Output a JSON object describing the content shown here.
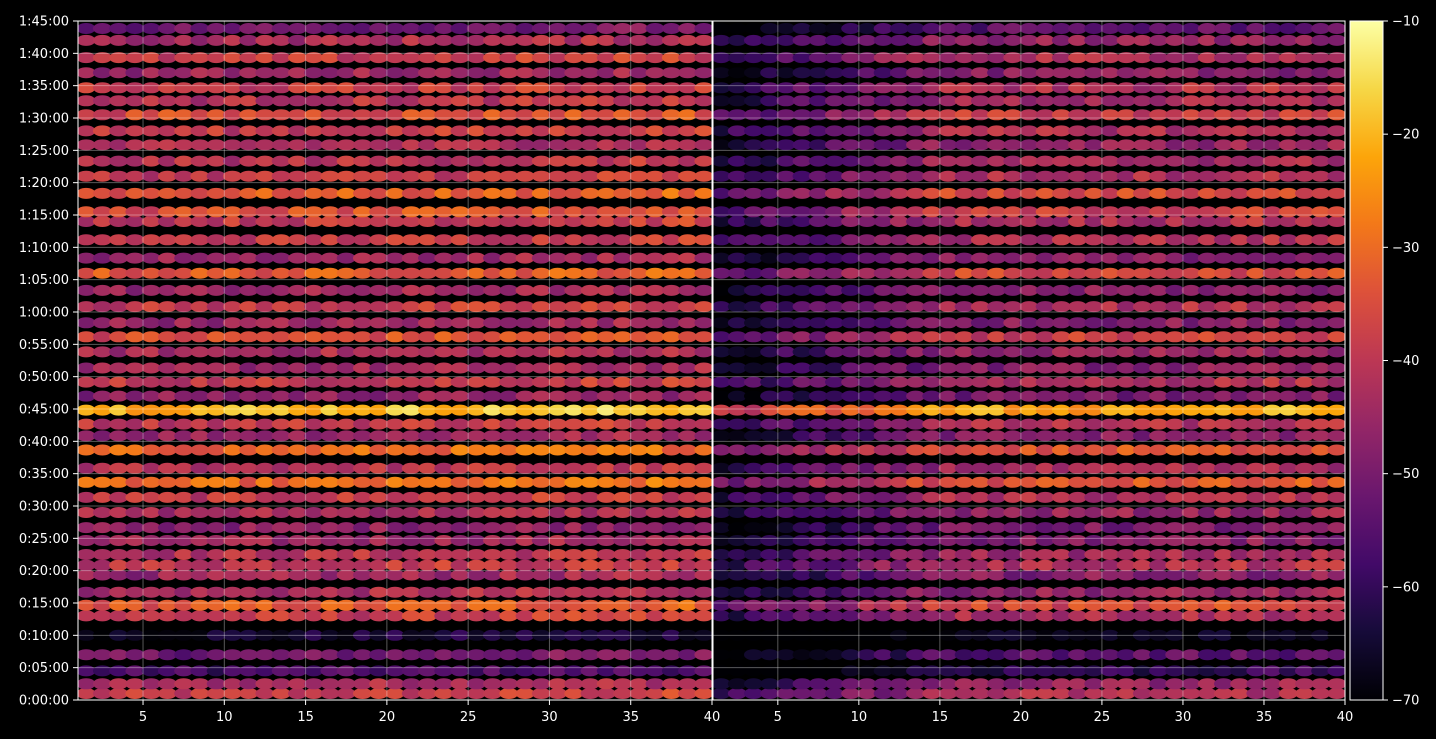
{
  "chart_data": {
    "type": "heatmap",
    "title": "",
    "xlabel": "",
    "ylabel": "",
    "grid": true,
    "background": "#000000",
    "colormap": "inferno",
    "panels": [
      {
        "xlim": [
          1,
          40
        ],
        "x_ticks": [
          5,
          10,
          15,
          20,
          25,
          30,
          35,
          40
        ],
        "x_tick_labels": [
          "5",
          "10",
          "15",
          "20",
          "25",
          "30",
          "35",
          "40"
        ]
      },
      {
        "xlim": [
          1,
          40
        ],
        "x_ticks": [
          5,
          10,
          15,
          20,
          25,
          30,
          35,
          40
        ],
        "x_tick_labels": [
          "5",
          "10",
          "15",
          "20",
          "25",
          "30",
          "35",
          "40"
        ]
      }
    ],
    "ylim_seconds": [
      0,
      6300
    ],
    "y_ticks_seconds": [
      0,
      300,
      600,
      900,
      1200,
      1500,
      1800,
      2100,
      2400,
      2700,
      3000,
      3300,
      3600,
      3900,
      4200,
      4500,
      4800,
      5100,
      5400,
      5700,
      6000,
      6300
    ],
    "y_tick_labels": [
      "0:00:00",
      "0:05:00",
      "0:10:00",
      "0:15:00",
      "0:20:00",
      "0:25:00",
      "0:30:00",
      "0:35:00",
      "0:40:00",
      "0:45:00",
      "0:50:00",
      "0:55:00",
      "1:00:00",
      "1:05:00",
      "1:10:00",
      "1:15:00",
      "1:20:00",
      "1:25:00",
      "1:30:00",
      "1:35:00",
      "1:40:00",
      "1:45:00"
    ],
    "colorbar": {
      "vmin": -70,
      "vmax": -10,
      "ticks": [
        -10,
        -20,
        -30,
        -40,
        -50,
        -60,
        -70
      ],
      "tick_labels": [
        "−10",
        "−20",
        "−30",
        "−40",
        "−50",
        "−60",
        "−70"
      ]
    },
    "row_bands": [
      {
        "t": 60,
        "level": -40
      },
      {
        "t": 150,
        "level": -44
      },
      {
        "t": 270,
        "level": -58
      },
      {
        "t": 420,
        "level": -52
      },
      {
        "t": 600,
        "level": -66
      },
      {
        "t": 780,
        "level": -40
      },
      {
        "t": 880,
        "level": -34
      },
      {
        "t": 1000,
        "level": -44
      },
      {
        "t": 1160,
        "level": -46
      },
      {
        "t": 1250,
        "level": -40
      },
      {
        "t": 1350,
        "level": -42
      },
      {
        "t": 1480,
        "level": -46
      },
      {
        "t": 1600,
        "level": -48
      },
      {
        "t": 1740,
        "level": -44
      },
      {
        "t": 1880,
        "level": -40
      },
      {
        "t": 2020,
        "level": -32
      },
      {
        "t": 2150,
        "level": -42
      },
      {
        "t": 2320,
        "level": -32
      },
      {
        "t": 2450,
        "level": -46
      },
      {
        "t": 2560,
        "level": -40
      },
      {
        "t": 2690,
        "level": -20
      },
      {
        "t": 2820,
        "level": -48
      },
      {
        "t": 2950,
        "level": -40
      },
      {
        "t": 3080,
        "level": -46
      },
      {
        "t": 3230,
        "level": -44
      },
      {
        "t": 3370,
        "level": -36
      },
      {
        "t": 3500,
        "level": -46
      },
      {
        "t": 3650,
        "level": -40
      },
      {
        "t": 3800,
        "level": -46
      },
      {
        "t": 3960,
        "level": -34
      },
      {
        "t": 4100,
        "level": -46
      },
      {
        "t": 4270,
        "level": -40
      },
      {
        "t": 4440,
        "level": -40
      },
      {
        "t": 4530,
        "level": -36
      },
      {
        "t": 4700,
        "level": -34
      },
      {
        "t": 4860,
        "level": -40
      },
      {
        "t": 5000,
        "level": -42
      },
      {
        "t": 5150,
        "level": -44
      },
      {
        "t": 5280,
        "level": -40
      },
      {
        "t": 5430,
        "level": -36
      },
      {
        "t": 5560,
        "level": -42
      },
      {
        "t": 5680,
        "level": -40
      },
      {
        "t": 5820,
        "level": -46
      },
      {
        "t": 5960,
        "level": -40
      },
      {
        "t": 6120,
        "level": -44
      },
      {
        "t": 6230,
        "level": -52
      }
    ]
  }
}
